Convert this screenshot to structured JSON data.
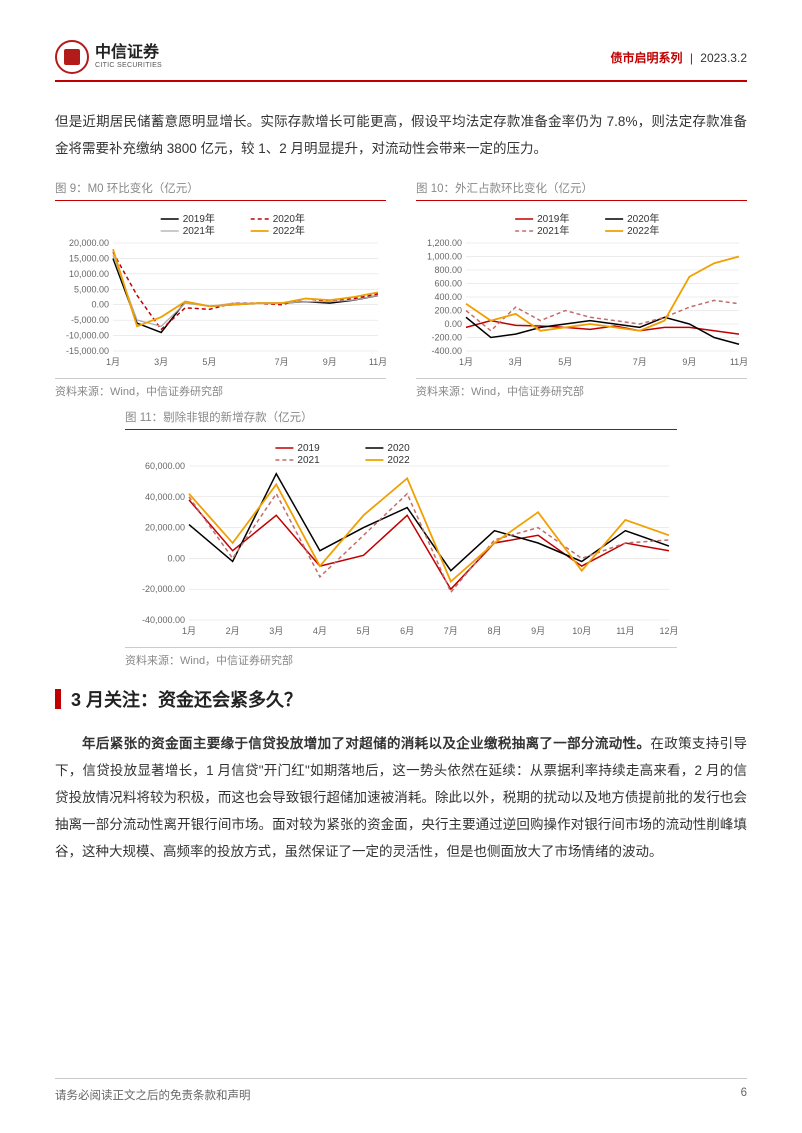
{
  "header": {
    "logo_cn": "中信证券",
    "logo_en": "CITIC SECURITIES",
    "series": "债市启明系列",
    "date": "2023.3.2"
  },
  "intro_text": "但是近期居民储蓄意愿明显增长。实际存款增长可能更高，假设平均法定存款准备金率仍为 7.8%，则法定存款准备金将需要补充缴纳 3800 亿元，较 1、2 月明显提升，对流动性会带来一定的压力。",
  "chart9": {
    "title": "图 9：M0 环比变化（亿元）",
    "type": "line",
    "source": "资料来源：Wind，中信证券研究部",
    "x_labels": [
      "1月",
      "3月",
      "5月",
      "7月",
      "9月",
      "11月"
    ],
    "ylim": [
      -15000,
      20000
    ],
    "ytick_step": 5000,
    "ytick_labels": [
      "-15,000.00",
      "-10,000.00",
      "-5,000.00",
      "0.00",
      "5,000.00",
      "10,000.00",
      "15,000.00",
      "20,000.00"
    ],
    "background_color": "#ffffff",
    "grid_color": "#d9d9d9",
    "label_fontsize": 9,
    "legend_pos": "top",
    "series": [
      {
        "name": "2019年",
        "color": "#000000",
        "dash": "none",
        "width": 1.5,
        "y": [
          15000,
          -6000,
          -9000,
          1000,
          -500,
          0,
          500,
          500,
          1000,
          500,
          1500,
          3000
        ]
      },
      {
        "name": "2020年",
        "color": "#c00000",
        "dash": "4,3",
        "width": 1.5,
        "y": [
          17000,
          3000,
          -8000,
          -1000,
          -1500,
          500,
          500,
          0,
          2000,
          1000,
          2000,
          3500
        ]
      },
      {
        "name": "2021年",
        "color": "#aaaaaa",
        "dash": "none",
        "width": 1.2,
        "y": [
          16000,
          -5000,
          -7000,
          500,
          -500,
          500,
          500,
          500,
          1000,
          1000,
          1500,
          3000
        ]
      },
      {
        "name": "2022年",
        "color": "#f0a000",
        "dash": "none",
        "width": 1.8,
        "y": [
          18000,
          -7000,
          -4000,
          1000,
          -500,
          0,
          500,
          500,
          2000,
          1500,
          2500,
          4000
        ]
      }
    ]
  },
  "chart10": {
    "title": "图 10：外汇占款环比变化（亿元）",
    "type": "line",
    "source": "资料来源：Wind，中信证券研究部",
    "x_labels": [
      "1月",
      "3月",
      "5月",
      "7月",
      "9月",
      "11月"
    ],
    "ylim": [
      -400,
      1200
    ],
    "ytick_step": 200,
    "ytick_labels": [
      "-400.00",
      "-200.00",
      "0.00",
      "200.00",
      "400.00",
      "600.00",
      "800.00",
      "1,000.00",
      "1,200.00"
    ],
    "background_color": "#ffffff",
    "grid_color": "#d9d9d9",
    "label_fontsize": 9,
    "legend_pos": "top",
    "series": [
      {
        "name": "2019年",
        "color": "#c00000",
        "dash": "none",
        "width": 1.5,
        "y": [
          -50,
          50,
          -20,
          -30,
          -50,
          -80,
          -30,
          -100,
          -50,
          -50,
          -100,
          -150
        ]
      },
      {
        "name": "2020年",
        "color": "#000000",
        "dash": "none",
        "width": 1.5,
        "y": [
          100,
          -200,
          -150,
          -50,
          0,
          50,
          0,
          -50,
          100,
          0,
          -200,
          -300
        ]
      },
      {
        "name": "2021年",
        "color": "#c46b6b",
        "dash": "4,3",
        "width": 1.5,
        "y": [
          200,
          -100,
          250,
          50,
          200,
          100,
          50,
          0,
          100,
          250,
          350,
          300
        ]
      },
      {
        "name": "2022年",
        "color": "#f0a000",
        "dash": "none",
        "width": 1.8,
        "y": [
          300,
          50,
          150,
          -100,
          -50,
          0,
          -50,
          -100,
          50,
          700,
          900,
          1000
        ]
      }
    ]
  },
  "chart11": {
    "title": "图 11：剔除非银的新增存款（亿元）",
    "type": "line",
    "source": "资料来源：Wind，中信证券研究部",
    "x_labels": [
      "1月",
      "2月",
      "3月",
      "4月",
      "5月",
      "6月",
      "7月",
      "8月",
      "9月",
      "10月",
      "11月",
      "12月"
    ],
    "ylim": [
      -40000,
      60000
    ],
    "ytick_step": 20000,
    "ytick_labels": [
      "-40,000.00",
      "-20,000.00",
      "0.00",
      "20,000.00",
      "40,000.00",
      "60,000.00"
    ],
    "background_color": "#ffffff",
    "grid_color": "#d9d9d9",
    "label_fontsize": 9,
    "legend_pos": "top",
    "series": [
      {
        "name": "2019",
        "color": "#c00000",
        "dash": "none",
        "width": 1.5,
        "y": [
          38000,
          5000,
          28000,
          -5000,
          2000,
          28000,
          -20000,
          10000,
          15000,
          -5000,
          10000,
          5000
        ]
      },
      {
        "name": "2020",
        "color": "#000000",
        "dash": "none",
        "width": 1.5,
        "y": [
          22000,
          -2000,
          55000,
          5000,
          20000,
          33000,
          -8000,
          18000,
          10000,
          -2000,
          18000,
          8000
        ]
      },
      {
        "name": "2021",
        "color": "#c46b6b",
        "dash": "4,3",
        "width": 1.5,
        "y": [
          40000,
          0,
          42000,
          -12000,
          15000,
          42000,
          -22000,
          12000,
          20000,
          0,
          10000,
          12000
        ]
      },
      {
        "name": "2022",
        "color": "#f0a000",
        "dash": "none",
        "width": 1.8,
        "y": [
          42000,
          10000,
          48000,
          -5000,
          28000,
          52000,
          -15000,
          10000,
          30000,
          -8000,
          25000,
          15000
        ]
      }
    ]
  },
  "section": {
    "heading": "3 月关注：资金还会紧多久？",
    "bold_lead": "年后紧张的资金面主要缘于信贷投放增加了对超储的消耗以及企业缴税抽离了一部分流动性。",
    "rest": "在政策支持引导下，信贷投放显著增长，1 月信贷\"开门红\"如期落地后，这一势头依然在延续：从票据利率持续走高来看，2 月的信贷投放情况料将较为积极，而这也会导致银行超储加速被消耗。除此以外，税期的扰动以及地方债提前批的发行也会抽离一部分流动性离开银行间市场。面对较为紧张的资金面，央行主要通过逆回购操作对银行间市场的流动性削峰填谷，这种大规模、高频率的投放方式，虽然保证了一定的灵活性，但是也侧面放大了市场情绪的波动。"
  },
  "footer": {
    "disclaimer": "请务必阅读正文之后的免责条款和声明",
    "page": "6"
  }
}
